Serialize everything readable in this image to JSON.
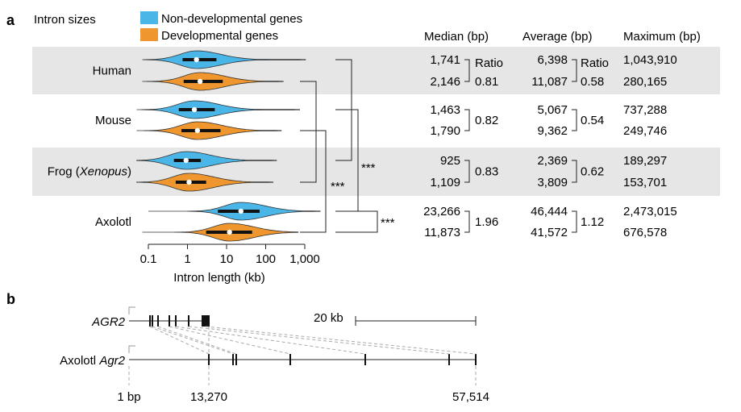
{
  "panel_a_letter": "a",
  "panel_b_letter": "b",
  "legend": {
    "title": "Intron sizes",
    "items": [
      {
        "label": "Non-developmental genes",
        "color": "#4ab6e8"
      },
      {
        "label": "Developmental genes",
        "color": "#f0962e"
      }
    ]
  },
  "stats_headers": {
    "median": "Median (bp)",
    "average": "Average (bp)",
    "maximum": "Maximum (bp)"
  },
  "ratio_label": "Ratio",
  "significance": "***",
  "chart_data": {
    "type": "violin",
    "xlabel": "Intron length (kb)",
    "x_scale": "log",
    "x_ticks": [
      "0.1",
      "1",
      "10",
      "100",
      "1,000"
    ],
    "species": [
      {
        "name": "Human",
        "italic": "",
        "suffix": "",
        "band": true,
        "non_dev": {
          "median": "1,741",
          "average": "6,398",
          "maximum": "1,043,910",
          "median_kb": 1.7,
          "q1_kb": 0.75,
          "q3_kb": 5.5,
          "min_kb": 0.07,
          "max_kb": 1043.9
        },
        "dev": {
          "median": "2,146",
          "average": "11,087",
          "maximum": "280,165",
          "median_kb": 2.1,
          "q1_kb": 0.8,
          "q3_kb": 8.0,
          "min_kb": 0.07,
          "max_kb": 280.2
        },
        "median_ratio": "0.81",
        "average_ratio": "0.58"
      },
      {
        "name": "Mouse",
        "italic": "",
        "suffix": "",
        "band": false,
        "non_dev": {
          "median": "1,463",
          "average": "5,067",
          "maximum": "737,288",
          "median_kb": 1.5,
          "q1_kb": 0.6,
          "q3_kb": 5.0,
          "min_kb": 0.05,
          "max_kb": 737.3
        },
        "dev": {
          "median": "1,790",
          "average": "9,362",
          "maximum": "249,746",
          "median_kb": 1.8,
          "q1_kb": 0.7,
          "q3_kb": 7.0,
          "min_kb": 0.05,
          "max_kb": 249.7
        },
        "median_ratio": "0.82",
        "average_ratio": "0.54"
      },
      {
        "name": "Frog (",
        "italic": "Xenopus",
        "suffix": ")",
        "band": true,
        "non_dev": {
          "median": "925",
          "average": "2,369",
          "maximum": "189,297",
          "median_kb": 0.92,
          "q1_kb": 0.45,
          "q3_kb": 2.2,
          "min_kb": 0.05,
          "max_kb": 189.3
        },
        "dev": {
          "median": "1,109",
          "average": "3,809",
          "maximum": "153,701",
          "median_kb": 1.1,
          "q1_kb": 0.5,
          "q3_kb": 3.0,
          "min_kb": 0.05,
          "max_kb": 153.7
        },
        "median_ratio": "0.83",
        "average_ratio": "0.62"
      },
      {
        "name": "Axolotl",
        "italic": "",
        "suffix": "",
        "band": false,
        "non_dev": {
          "median": "23,266",
          "average": "46,444",
          "maximum": "2,473,015",
          "median_kb": 23.3,
          "q1_kb": 6.0,
          "q3_kb": 70.0,
          "min_kb": 0.1,
          "max_kb": 2473.0
        },
        "dev": {
          "median": "11,873",
          "average": "41,572",
          "maximum": "676,578",
          "median_kb": 11.9,
          "q1_kb": 3.0,
          "q3_kb": 45.0,
          "min_kb": 0.07,
          "max_kb": 676.6
        },
        "median_ratio": "1.96",
        "average_ratio": "1.12"
      }
    ]
  },
  "panel_b": {
    "gene_human": "AGR2",
    "gene_axolotl_prefix": "Axolotl ",
    "gene_axolotl": "Agr2",
    "scale_label": "20 kb",
    "positions": [
      "1 bp",
      "13,270",
      "57,514"
    ]
  }
}
